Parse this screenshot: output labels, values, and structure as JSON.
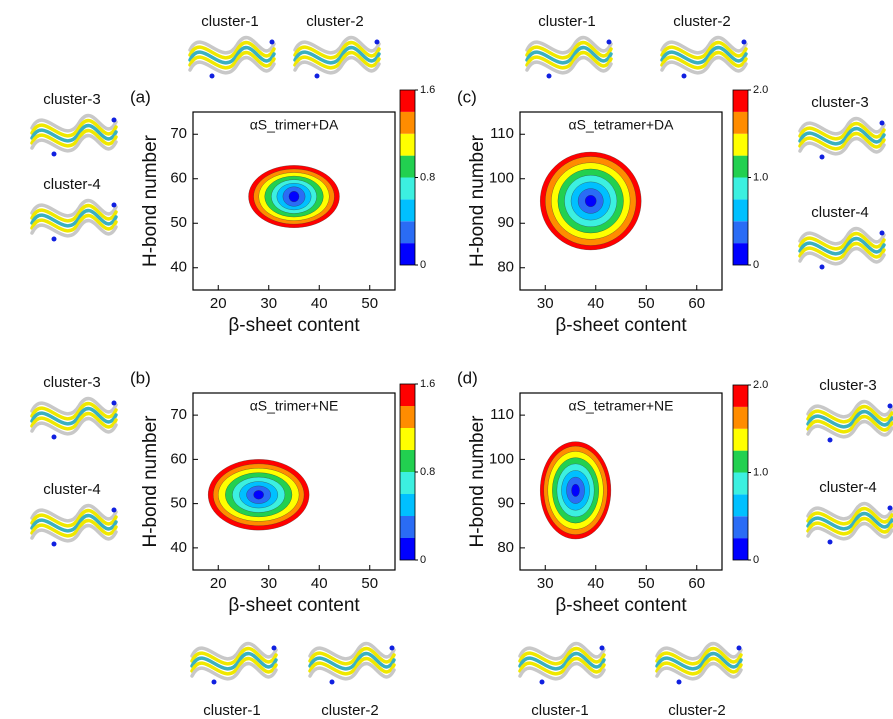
{
  "chart_data": [
    {
      "type": "contour",
      "label": "(a)",
      "title": "αS_trimer+DA",
      "xlabel": "β-sheet content",
      "ylabel": "H-bond number",
      "xlim": [
        15,
        55
      ],
      "xticks": [
        20,
        30,
        40,
        50
      ],
      "ylim": [
        35,
        75
      ],
      "yticks": [
        40,
        50,
        60,
        70
      ],
      "center": [
        35,
        56
      ],
      "contours": [
        {
          "level": 1.5,
          "rx": 9,
          "ry": 7
        },
        {
          "level": 1.3,
          "rx": 8,
          "ry": 6.2
        },
        {
          "level": 1.1,
          "rx": 7,
          "ry": 5.4
        },
        {
          "level": 0.9,
          "rx": 5.8,
          "ry": 4.6
        },
        {
          "level": 0.7,
          "rx": 4.5,
          "ry": 3.8
        },
        {
          "level": 0.5,
          "rx": 3.4,
          "ry": 3
        },
        {
          "level": 0.3,
          "rx": 2.2,
          "ry": 2.2
        },
        {
          "level": 0.1,
          "rx": 1,
          "ry": 1.2
        }
      ],
      "colorbar": {
        "lim": [
          0,
          1.6
        ],
        "ticks": [
          0,
          0.8,
          1.6
        ],
        "colors": [
          "#0000ff",
          "#2a6cf5",
          "#00c0ff",
          "#3cf0e0",
          "#22d050",
          "#ffff00",
          "#ff8c00",
          "#ff0000"
        ]
      },
      "clusters": [
        "cluster-1",
        "cluster-2",
        "cluster-3",
        "cluster-4"
      ]
    },
    {
      "type": "contour",
      "label": "(b)",
      "title": "αS_trimer+NE",
      "xlabel": "β-sheet content",
      "ylabel": "H-bond number",
      "xlim": [
        15,
        55
      ],
      "xticks": [
        20,
        30,
        40,
        50
      ],
      "ylim": [
        35,
        75
      ],
      "yticks": [
        40,
        50,
        60,
        70
      ],
      "center": [
        28,
        52
      ],
      "contours": [
        {
          "level": 1.5,
          "rx": 10,
          "ry": 8
        },
        {
          "level": 1.3,
          "rx": 9,
          "ry": 7
        },
        {
          "level": 1.1,
          "rx": 8,
          "ry": 6
        },
        {
          "level": 0.9,
          "rx": 6.6,
          "ry": 5
        },
        {
          "level": 0.7,
          "rx": 5.2,
          "ry": 4
        },
        {
          "level": 0.5,
          "rx": 3.8,
          "ry": 3
        },
        {
          "level": 0.3,
          "rx": 2.4,
          "ry": 2
        },
        {
          "level": 0.1,
          "rx": 1,
          "ry": 1
        }
      ],
      "colorbar": {
        "lim": [
          0,
          1.6
        ],
        "ticks": [
          0,
          0.8,
          1.6
        ],
        "colors": [
          "#0000ff",
          "#2a6cf5",
          "#00c0ff",
          "#3cf0e0",
          "#22d050",
          "#ffff00",
          "#ff8c00",
          "#ff0000"
        ]
      },
      "clusters": [
        "cluster-1",
        "cluster-2",
        "cluster-3",
        "cluster-4"
      ]
    },
    {
      "type": "contour",
      "label": "(c)",
      "title": "αS_tetramer+DA",
      "xlabel": "β-sheet content",
      "ylabel": "H-bond number",
      "xlim": [
        25,
        65
      ],
      "xticks": [
        30,
        40,
        50,
        60
      ],
      "ylim": [
        75,
        115
      ],
      "yticks": [
        80,
        90,
        100,
        110
      ],
      "center": [
        39,
        95
      ],
      "contours": [
        {
          "level": 1.9,
          "rx": 10,
          "ry": 11
        },
        {
          "level": 1.6,
          "rx": 9,
          "ry": 10
        },
        {
          "level": 1.4,
          "rx": 7.8,
          "ry": 8.6
        },
        {
          "level": 1.1,
          "rx": 6.5,
          "ry": 7.2
        },
        {
          "level": 0.9,
          "rx": 5.2,
          "ry": 5.8
        },
        {
          "level": 0.6,
          "rx": 3.9,
          "ry": 4.3
        },
        {
          "level": 0.4,
          "rx": 2.5,
          "ry": 2.8
        },
        {
          "level": 0.1,
          "rx": 1.1,
          "ry": 1.3
        }
      ],
      "colorbar": {
        "lim": [
          0,
          2
        ],
        "ticks": [
          0,
          {
            "value": 1,
            "label": "1.0"
          },
          {
            "value": 2,
            "label": "2.0"
          }
        ],
        "colors": [
          "#0000ff",
          "#2a6cf5",
          "#00c0ff",
          "#3cf0e0",
          "#22d050",
          "#ffff00",
          "#ff8c00",
          "#ff0000"
        ]
      },
      "clusters": [
        "cluster-1",
        "cluster-2",
        "cluster-3",
        "cluster-4"
      ]
    },
    {
      "type": "contour",
      "label": "(d)",
      "title": "αS_tetramer+NE",
      "xlabel": "β-sheet content",
      "ylabel": "H-bond number",
      "xlim": [
        25,
        65
      ],
      "xticks": [
        30,
        40,
        50,
        60
      ],
      "ylim": [
        75,
        115
      ],
      "yticks": [
        80,
        90,
        100,
        110
      ],
      "center": [
        36,
        93
      ],
      "contours": [
        {
          "level": 1.9,
          "rx": 7,
          "ry": 11
        },
        {
          "level": 1.6,
          "rx": 6.3,
          "ry": 10
        },
        {
          "level": 1.4,
          "rx": 5.5,
          "ry": 8.8
        },
        {
          "level": 1.1,
          "rx": 4.6,
          "ry": 7.4
        },
        {
          "level": 0.9,
          "rx": 3.7,
          "ry": 6
        },
        {
          "level": 0.6,
          "rx": 2.8,
          "ry": 4.5
        },
        {
          "level": 0.4,
          "rx": 1.8,
          "ry": 3
        },
        {
          "level": 0.1,
          "rx": 0.8,
          "ry": 1.4
        }
      ],
      "colorbar": {
        "lim": [
          0,
          2
        ],
        "ticks": [
          0,
          {
            "value": 1,
            "label": "1.0"
          },
          {
            "value": 2,
            "label": "2.0"
          }
        ],
        "colors": [
          "#0000ff",
          "#2a6cf5",
          "#00c0ff",
          "#3cf0e0",
          "#22d050",
          "#ffff00",
          "#ff8c00",
          "#ff0000"
        ]
      },
      "clusters": [
        "cluster-1",
        "cluster-2",
        "cluster-3",
        "cluster-4"
      ]
    }
  ]
}
